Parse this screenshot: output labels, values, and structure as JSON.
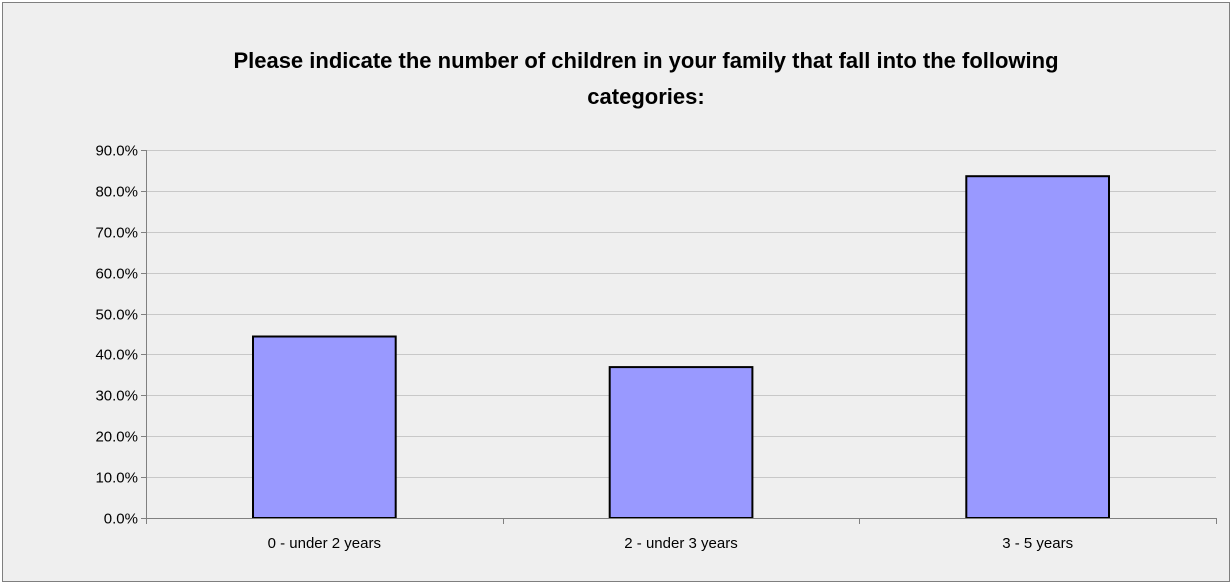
{
  "colors": {
    "background": "#efefef",
    "bar_fill": "#9999ff",
    "bar_stroke": "#000000",
    "gridline": "#c8c8c8",
    "axis": "#808080"
  },
  "chart_data": {
    "type": "bar",
    "title_lines": [
      "Please indicate the number of children in your family that fall into the following",
      "categories:"
    ],
    "categories": [
      "0 - under 2 years",
      "2 - under 3 years",
      "3 - 5 years"
    ],
    "values": [
      44.4,
      36.9,
      83.6
    ],
    "xlabel": "",
    "ylabel": "",
    "ylim": [
      0,
      90
    ],
    "ytick_step": 10,
    "ytick_labels": [
      "0.0%",
      "10.0%",
      "20.0%",
      "30.0%",
      "40.0%",
      "50.0%",
      "60.0%",
      "70.0%",
      "80.0%",
      "90.0%"
    ],
    "grid": true,
    "legend": "none"
  }
}
